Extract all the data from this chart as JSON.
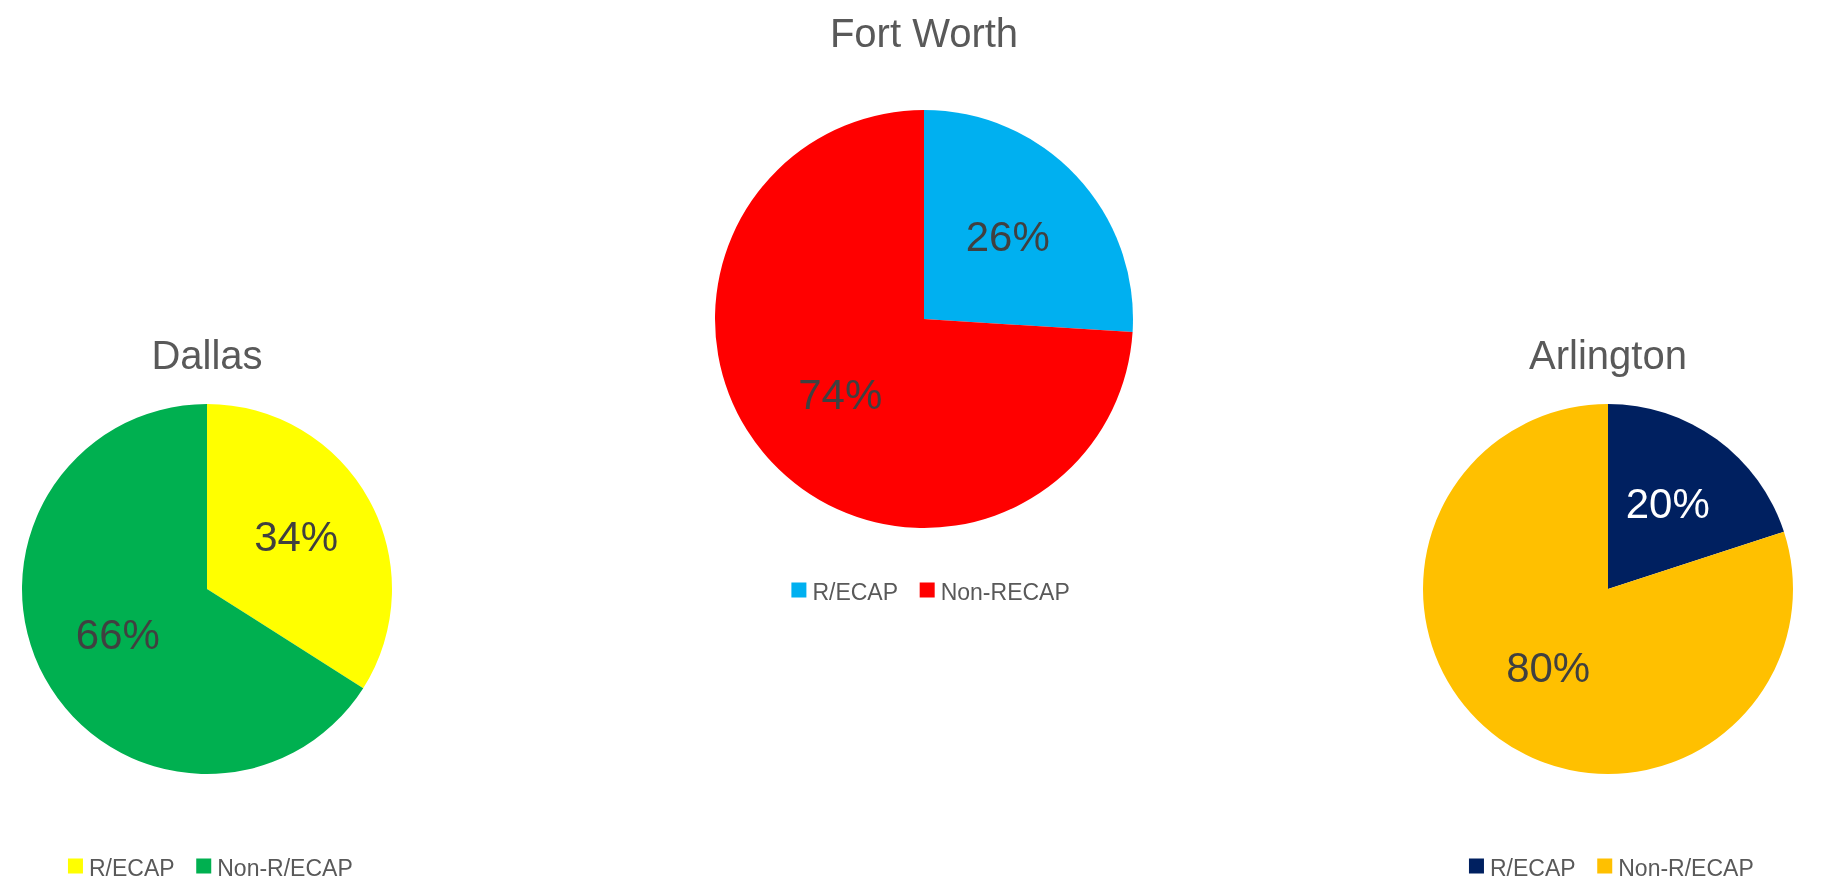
{
  "chart_data": [
    {
      "type": "pie",
      "title": "Dallas",
      "categories": [
        "R/ECAP",
        "Non-R/ECAP"
      ],
      "values": [
        34,
        66
      ],
      "value_labels": [
        "34%",
        "66%"
      ],
      "colors": [
        "#ffff00",
        "#00b050"
      ],
      "legend": "bottom"
    },
    {
      "type": "pie",
      "title": "Fort Worth",
      "categories": [
        "R/ECAP",
        "Non-RECAP"
      ],
      "values": [
        26,
        74
      ],
      "value_labels": [
        "26%",
        "74%"
      ],
      "colors": [
        "#00b0f0",
        "#ff0000"
      ],
      "legend": "bottom"
    },
    {
      "type": "pie",
      "title": "Arlington",
      "categories": [
        "R/ECAP",
        "Non-R/ECAP"
      ],
      "values": [
        20,
        80
      ],
      "value_labels": [
        "20%",
        "80%"
      ],
      "colors": [
        "#002060",
        "#ffc000"
      ],
      "legend": "bottom"
    }
  ]
}
